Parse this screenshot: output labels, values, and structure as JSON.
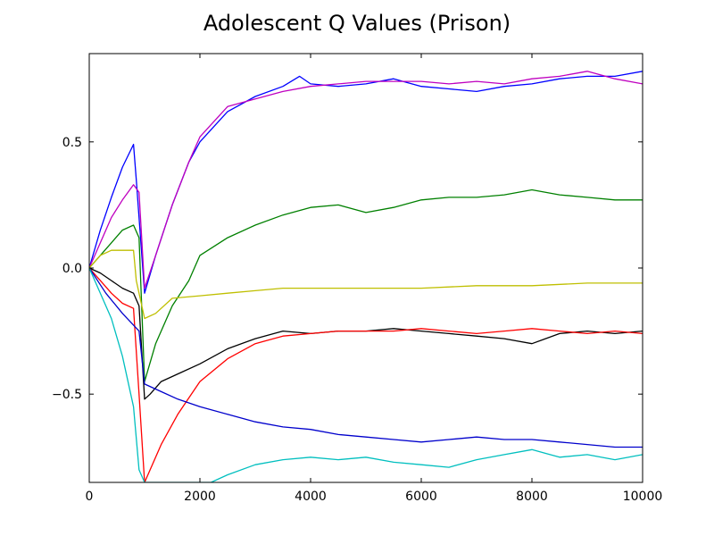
{
  "chart_data": {
    "type": "line",
    "title": "Adolescent Q Values (Prison)",
    "xlabel": "",
    "ylabel": "",
    "xlim": [
      0,
      10000
    ],
    "ylim": [
      -0.85,
      0.85
    ],
    "x_ticks": [
      0,
      2000,
      4000,
      6000,
      8000,
      10000
    ],
    "x_tick_labels": [
      "0",
      "2000",
      "4000",
      "6000",
      "8000",
      "10000"
    ],
    "y_ticks": [
      0.5,
      0.0,
      -0.5
    ],
    "y_tick_labels": [
      "0.5",
      "0.0",
      "−0.5"
    ],
    "grid": false,
    "legend": "none",
    "series": [
      {
        "color": "#0000ff",
        "x": [
          0,
          200,
          400,
          600,
          800,
          850,
          1000,
          1200,
          1500,
          1800,
          2000,
          2500,
          3000,
          3500,
          3800,
          4000,
          4500,
          5000,
          5500,
          6000,
          6500,
          7000,
          7500,
          8000,
          8500,
          9000,
          9500,
          10000
        ],
        "y": [
          0.0,
          0.15,
          0.28,
          0.4,
          0.49,
          0.35,
          -0.1,
          0.05,
          0.25,
          0.42,
          0.5,
          0.62,
          0.68,
          0.72,
          0.76,
          0.73,
          0.72,
          0.73,
          0.75,
          0.72,
          0.71,
          0.7,
          0.72,
          0.73,
          0.75,
          0.76,
          0.76,
          0.78
        ]
      },
      {
        "color": "#bf00bf",
        "x": [
          0,
          200,
          400,
          600,
          800,
          900,
          1000,
          1200,
          1500,
          1800,
          2000,
          2500,
          3000,
          3500,
          4000,
          4500,
          5000,
          5500,
          6000,
          6500,
          7000,
          7500,
          8000,
          8500,
          9000,
          9500,
          10000
        ],
        "y": [
          0.0,
          0.1,
          0.2,
          0.27,
          0.33,
          0.3,
          -0.08,
          0.05,
          0.25,
          0.42,
          0.52,
          0.64,
          0.67,
          0.7,
          0.72,
          0.73,
          0.74,
          0.74,
          0.74,
          0.73,
          0.74,
          0.73,
          0.75,
          0.76,
          0.78,
          0.75,
          0.73
        ]
      },
      {
        "color": "#008000",
        "x": [
          0,
          200,
          400,
          600,
          800,
          900,
          1000,
          1200,
          1500,
          1800,
          2000,
          2500,
          3000,
          3500,
          4000,
          4500,
          5000,
          5500,
          6000,
          6500,
          7000,
          7500,
          8000,
          8500,
          9000,
          9500,
          10000
        ],
        "y": [
          0.0,
          0.05,
          0.1,
          0.15,
          0.17,
          0.12,
          -0.45,
          -0.3,
          -0.15,
          -0.05,
          0.05,
          0.12,
          0.17,
          0.21,
          0.24,
          0.25,
          0.22,
          0.24,
          0.27,
          0.28,
          0.28,
          0.29,
          0.31,
          0.29,
          0.28,
          0.27,
          0.27
        ]
      },
      {
        "color": "#bfbf00",
        "x": [
          0,
          200,
          400,
          600,
          800,
          850,
          1000,
          1200,
          1500,
          2000,
          2500,
          3000,
          3500,
          4000,
          5000,
          6000,
          7000,
          8000,
          9000,
          10000
        ],
        "y": [
          0.0,
          0.05,
          0.07,
          0.07,
          0.07,
          -0.05,
          -0.2,
          -0.18,
          -0.12,
          -0.11,
          -0.1,
          -0.09,
          -0.08,
          -0.08,
          -0.08,
          -0.08,
          -0.07,
          -0.07,
          -0.06,
          -0.06
        ]
      },
      {
        "color": "#000000",
        "x": [
          0,
          200,
          400,
          600,
          800,
          900,
          1000,
          1100,
          1300,
          1600,
          2000,
          2500,
          3000,
          3500,
          4000,
          4500,
          5000,
          5500,
          6000,
          6500,
          7000,
          7500,
          8000,
          8500,
          9000,
          9500,
          10000
        ],
        "y": [
          0.0,
          -0.02,
          -0.05,
          -0.08,
          -0.1,
          -0.15,
          -0.52,
          -0.5,
          -0.45,
          -0.42,
          -0.38,
          -0.32,
          -0.28,
          -0.25,
          -0.26,
          -0.25,
          -0.25,
          -0.24,
          -0.25,
          -0.26,
          -0.27,
          -0.28,
          -0.3,
          -0.26,
          -0.25,
          -0.26,
          -0.25
        ]
      },
      {
        "color": "#ff0000",
        "x": [
          0,
          200,
          400,
          600,
          800,
          900,
          1000,
          1100,
          1300,
          1600,
          2000,
          2500,
          3000,
          3500,
          4000,
          4500,
          5000,
          5500,
          6000,
          6500,
          7000,
          7500,
          8000,
          8500,
          9000,
          9500,
          10000
        ],
        "y": [
          0.0,
          -0.05,
          -0.1,
          -0.14,
          -0.16,
          -0.5,
          -0.85,
          -0.8,
          -0.7,
          -0.58,
          -0.45,
          -0.36,
          -0.3,
          -0.27,
          -0.26,
          -0.25,
          -0.25,
          -0.25,
          -0.24,
          -0.25,
          -0.26,
          -0.25,
          -0.24,
          -0.25,
          -0.26,
          -0.25,
          -0.26
        ]
      },
      {
        "color": "#0000cc",
        "x": [
          0,
          300,
          600,
          900,
          1000,
          1300,
          1600,
          2000,
          2500,
          3000,
          3500,
          4000,
          4500,
          5000,
          5500,
          6000,
          6500,
          7000,
          7500,
          8000,
          8500,
          9000,
          9500,
          10000
        ],
        "y": [
          0.0,
          -0.1,
          -0.18,
          -0.25,
          -0.46,
          -0.49,
          -0.52,
          -0.55,
          -0.58,
          -0.61,
          -0.63,
          -0.64,
          -0.66,
          -0.67,
          -0.68,
          -0.69,
          -0.68,
          -0.67,
          -0.68,
          -0.68,
          -0.69,
          -0.7,
          -0.71,
          -0.71
        ]
      },
      {
        "color": "#00bfbf",
        "x": [
          0,
          200,
          400,
          600,
          800,
          900,
          1000,
          2200,
          2500,
          3000,
          3500,
          4000,
          4500,
          5000,
          5500,
          6000,
          6500,
          7000,
          7500,
          8000,
          8500,
          9000,
          9500,
          10000
        ],
        "y": [
          0.0,
          -0.1,
          -0.2,
          -0.35,
          -0.55,
          -0.8,
          -0.85,
          -0.85,
          -0.82,
          -0.78,
          -0.76,
          -0.75,
          -0.76,
          -0.75,
          -0.77,
          -0.78,
          -0.79,
          -0.76,
          -0.74,
          -0.72,
          -0.75,
          -0.74,
          -0.76,
          -0.74
        ]
      }
    ]
  }
}
